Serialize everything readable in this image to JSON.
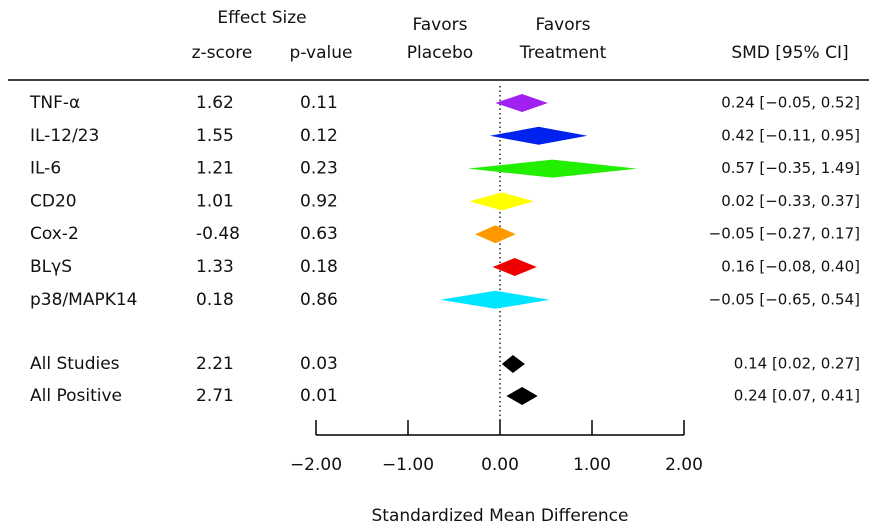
{
  "chart_data": {
    "type": "forest",
    "header": {
      "effect_size": "Effect Size",
      "z_score": "z-score",
      "p_value": "p-value",
      "favors_placebo": [
        "Favors",
        "Placebo"
      ],
      "favors_treatment": [
        "Favors",
        "Treatment"
      ],
      "smd": "SMD [95% CI]"
    },
    "rows": [
      {
        "name": "TNF-α",
        "color": "#a020f0",
        "z": 1.62,
        "p": 0.11,
        "smd": 0.24,
        "ci": [
          -0.05,
          0.52
        ],
        "smd_label": "0.24 [−0.05, 0.52]"
      },
      {
        "name": "IL-12/23",
        "color": "#0022ee",
        "z": 1.55,
        "p": 0.12,
        "smd": 0.42,
        "ci": [
          -0.11,
          0.95
        ],
        "smd_label": "0.42 [−0.11, 0.95]"
      },
      {
        "name": "IL-6",
        "color": "#22ee00",
        "z": 1.21,
        "p": 0.23,
        "smd": 0.57,
        "ci": [
          -0.35,
          1.49
        ],
        "smd_label": "0.57 [−0.35, 1.49]"
      },
      {
        "name": "CD20",
        "color": "#ffff00",
        "z": 1.01,
        "p": 0.92,
        "smd": 0.02,
        "ci": [
          -0.33,
          0.37
        ],
        "smd_label": "0.02 [−0.33, 0.37]"
      },
      {
        "name": "Cox-2",
        "color": "#ff9900",
        "z": -0.48,
        "p": 0.63,
        "smd": -0.05,
        "ci": [
          -0.27,
          0.17
        ],
        "smd_label": "−0.05 [−0.27, 0.17]"
      },
      {
        "name": "BLγS",
        "color": "#ee0000",
        "z": 1.33,
        "p": 0.18,
        "smd": 0.16,
        "ci": [
          -0.08,
          0.4
        ],
        "smd_label": "0.16 [−0.08, 0.40]"
      },
      {
        "name": "p38/MAPK14",
        "color": "#00e5ff",
        "z": 0.18,
        "p": 0.86,
        "smd": -0.05,
        "ci": [
          -0.65,
          0.54
        ],
        "smd_label": "−0.05 [−0.65, 0.54]"
      }
    ],
    "summaries": [
      {
        "name": "All Studies",
        "color": "#000000",
        "z": 2.21,
        "p": 0.03,
        "smd": 0.14,
        "ci": [
          0.02,
          0.27
        ],
        "smd_label": "0.14 [0.02, 0.27]"
      },
      {
        "name": "All Positive",
        "color": "#000000",
        "z": 2.71,
        "p": 0.01,
        "smd": 0.24,
        "ci": [
          0.07,
          0.41
        ],
        "smd_label": "0.24 [0.07, 0.41]"
      }
    ],
    "xlabel": "Standardized Mean Difference",
    "xlim": [
      -2,
      2
    ],
    "xticks": [
      {
        "value": -2,
        "label": "−2.00"
      },
      {
        "value": -1,
        "label": "−1.00"
      },
      {
        "value": 0,
        "label": "0.00"
      },
      {
        "value": 1,
        "label": "1.00"
      },
      {
        "value": 2,
        "label": "2.00"
      }
    ]
  }
}
